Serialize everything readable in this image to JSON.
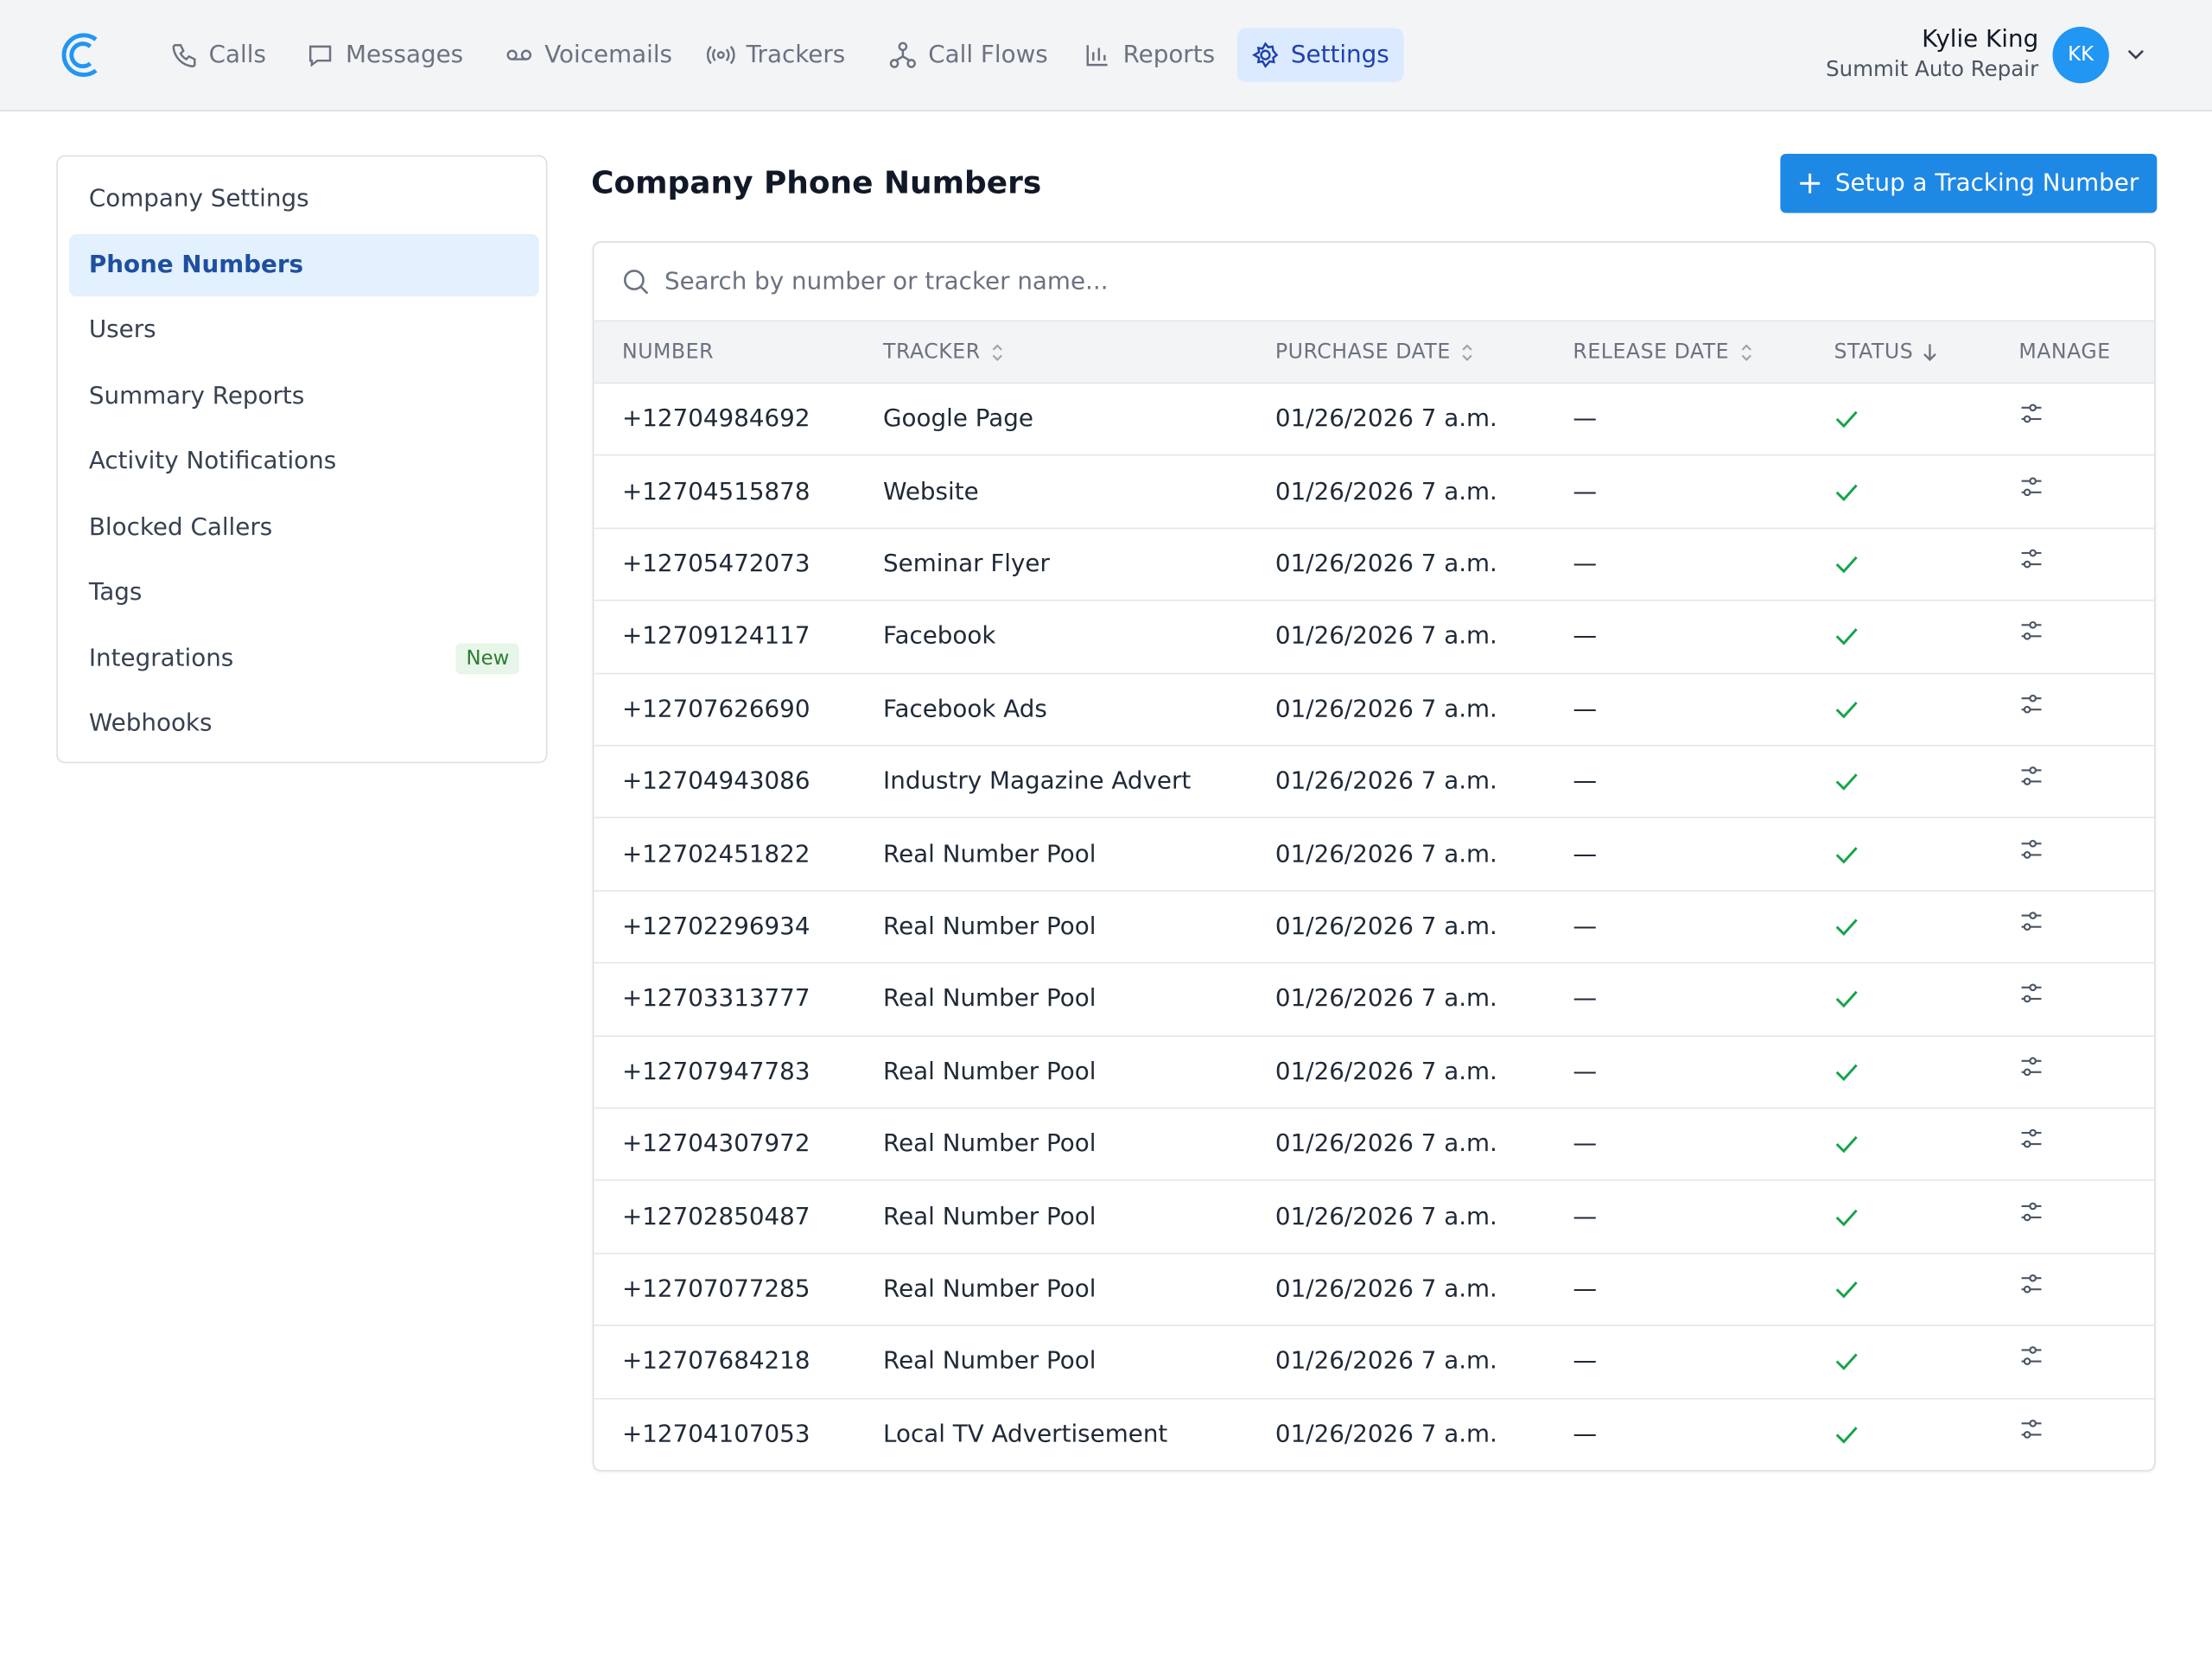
{
  "header": {
    "nav": [
      {
        "label": "Calls"
      },
      {
        "label": "Messages"
      },
      {
        "label": "Voicemails"
      },
      {
        "label": "Trackers"
      },
      {
        "label": "Call Flows"
      },
      {
        "label": "Reports"
      },
      {
        "label": "Settings",
        "active": true
      }
    ],
    "user": {
      "name": "Kylie King",
      "company": "Summit Auto Repair",
      "initials": "KK"
    }
  },
  "sidebar": {
    "items": [
      {
        "label": "Company Settings"
      },
      {
        "label": "Phone Numbers",
        "active": true
      },
      {
        "label": "Users"
      },
      {
        "label": "Summary Reports"
      },
      {
        "label": "Activity Notifications"
      },
      {
        "label": "Blocked Callers"
      },
      {
        "label": "Tags"
      },
      {
        "label": "Integrations",
        "badge": "New"
      },
      {
        "label": "Webhooks"
      }
    ]
  },
  "main": {
    "title": "Company Phone Numbers",
    "button": "Setup a Tracking Number",
    "search_placeholder": "Search by number or tracker name...",
    "table": {
      "headers": [
        {
          "label": "NUMBER"
        },
        {
          "label": "TRACKER",
          "sortable": true
        },
        {
          "label": "PURCHASE DATE",
          "sortable": true
        },
        {
          "label": "RELEASE DATE",
          "sortable": true
        },
        {
          "label": "STATUS",
          "sorted": "desc"
        },
        {
          "label": "MANAGE"
        }
      ],
      "rows": [
        {
          "number": "+12704984692",
          "tracker": "Google Page",
          "purchase_date": "01/26/2026 7 a.m.",
          "release_date": "—",
          "active": true
        },
        {
          "number": "+12704515878",
          "tracker": "Website",
          "purchase_date": "01/26/2026 7 a.m.",
          "release_date": "—",
          "active": true
        },
        {
          "number": "+12705472073",
          "tracker": "Seminar Flyer",
          "purchase_date": "01/26/2026 7 a.m.",
          "release_date": "—",
          "active": true
        },
        {
          "number": "+12709124117",
          "tracker": "Facebook",
          "purchase_date": "01/26/2026 7 a.m.",
          "release_date": "—",
          "active": true
        },
        {
          "number": "+12707626690",
          "tracker": "Facebook Ads",
          "purchase_date": "01/26/2026 7 a.m.",
          "release_date": "—",
          "active": true
        },
        {
          "number": "+12704943086",
          "tracker": "Industry Magazine Advert",
          "purchase_date": "01/26/2026 7 a.m.",
          "release_date": "—",
          "active": true
        },
        {
          "number": "+12702451822",
          "tracker": "Real Number Pool",
          "purchase_date": "01/26/2026 7 a.m.",
          "release_date": "—",
          "active": true
        },
        {
          "number": "+12702296934",
          "tracker": "Real Number Pool",
          "purchase_date": "01/26/2026 7 a.m.",
          "release_date": "—",
          "active": true
        },
        {
          "number": "+12703313777",
          "tracker": "Real Number Pool",
          "purchase_date": "01/26/2026 7 a.m.",
          "release_date": "—",
          "active": true
        },
        {
          "number": "+12707947783",
          "tracker": "Real Number Pool",
          "purchase_date": "01/26/2026 7 a.m.",
          "release_date": "—",
          "active": true
        },
        {
          "number": "+12704307972",
          "tracker": "Real Number Pool",
          "purchase_date": "01/26/2026 7 a.m.",
          "release_date": "—",
          "active": true
        },
        {
          "number": "+12702850487",
          "tracker": "Real Number Pool",
          "purchase_date": "01/26/2026 7 a.m.",
          "release_date": "—",
          "active": true
        },
        {
          "number": "+12707077285",
          "tracker": "Real Number Pool",
          "purchase_date": "01/26/2026 7 a.m.",
          "release_date": "—",
          "active": true
        },
        {
          "number": "+12707684218",
          "tracker": "Real Number Pool",
          "purchase_date": "01/26/2026 7 a.m.",
          "release_date": "—",
          "active": true
        },
        {
          "number": "+12704107053",
          "tracker": "Local TV Advertisement",
          "purchase_date": "01/26/2026 7 a.m.",
          "release_date": "—",
          "active": true
        }
      ]
    }
  }
}
